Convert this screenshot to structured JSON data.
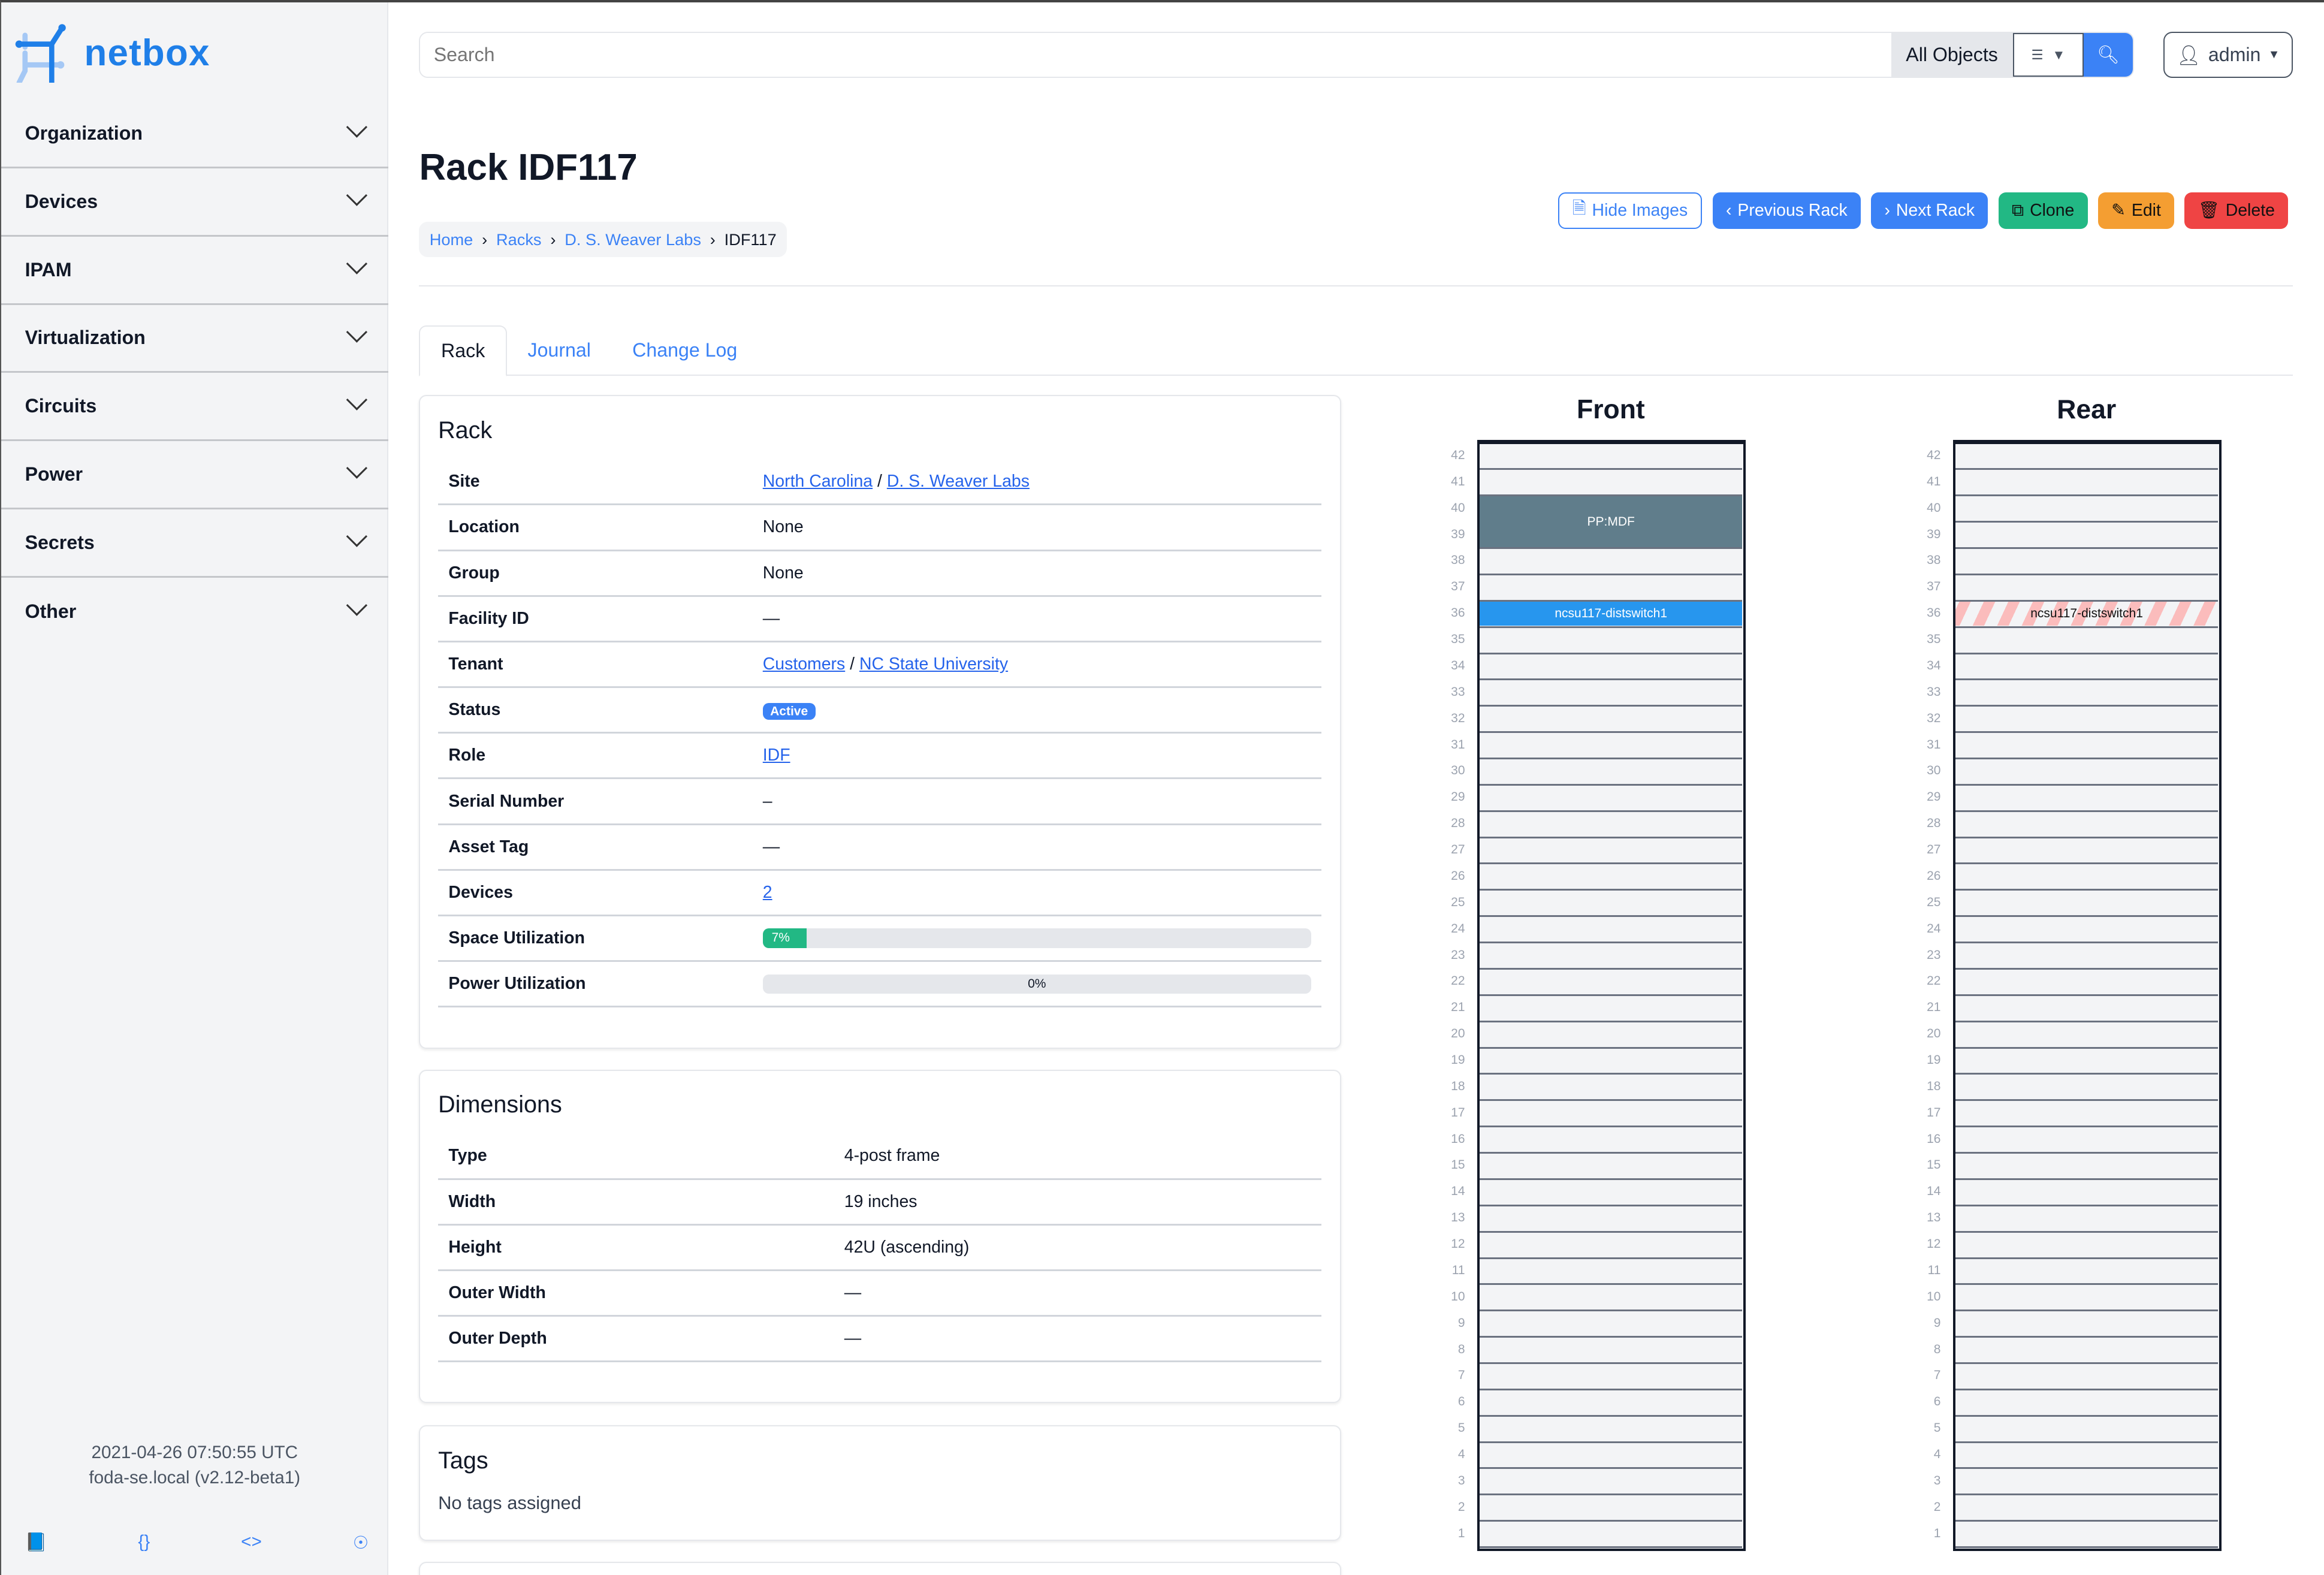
{
  "app": {
    "name": "netbox"
  },
  "sidebar": {
    "items": [
      {
        "label": "Organization"
      },
      {
        "label": "Devices"
      },
      {
        "label": "IPAM"
      },
      {
        "label": "Virtualization"
      },
      {
        "label": "Circuits"
      },
      {
        "label": "Power"
      },
      {
        "label": "Secrets"
      },
      {
        "label": "Other"
      }
    ],
    "footer": {
      "timestamp": "2021-04-26 07:50:55 UTC",
      "host": "foda-se.local (v2.12-beta1)",
      "icons": [
        "book-icon",
        "api-braces-icon",
        "code-icon",
        "help-lifebuoy-icon"
      ]
    }
  },
  "search": {
    "placeholder": "Search",
    "scope": "All Objects"
  },
  "user": {
    "name": "admin"
  },
  "page": {
    "title": "Rack IDF117",
    "breadcrumb": [
      "Home",
      "Racks",
      "D. S. Weaver Labs",
      "IDF117"
    ]
  },
  "actions": {
    "hide_images": "Hide Images",
    "previous": "Previous Rack",
    "next": "Next Rack",
    "clone": "Clone",
    "edit": "Edit",
    "delete": "Delete"
  },
  "colors": {
    "primary": "#3b82f6",
    "success": "#22b884",
    "warning": "#f49e32",
    "danger": "#ef4444",
    "device_front": "#2796ee",
    "patch_panel": "#607d8b"
  },
  "tabs": [
    {
      "label": "Rack"
    },
    {
      "label": "Journal"
    },
    {
      "label": "Change Log"
    }
  ],
  "rack_card": {
    "title": "Rack",
    "rows": {
      "site": {
        "label": "Site",
        "region": "North Carolina",
        "sep": "/",
        "site": "D. S. Weaver Labs"
      },
      "location": {
        "label": "Location",
        "value": "None"
      },
      "group": {
        "label": "Group",
        "value": "None"
      },
      "facility": {
        "label": "Facility ID",
        "value": "—"
      },
      "tenant": {
        "label": "Tenant",
        "group": "Customers",
        "sep": "/",
        "tenant": "NC State University"
      },
      "status": {
        "label": "Status",
        "value": "Active"
      },
      "role": {
        "label": "Role",
        "value": "IDF"
      },
      "serial": {
        "label": "Serial Number",
        "value": "–"
      },
      "asset": {
        "label": "Asset Tag",
        "value": "—"
      },
      "devices": {
        "label": "Devices",
        "value": "2"
      },
      "space": {
        "label": "Space Utilization",
        "value": "7%",
        "percent": 7
      },
      "power": {
        "label": "Power Utilization",
        "value": "0%",
        "percent": 0
      }
    }
  },
  "dimensions": {
    "title": "Dimensions",
    "rows": [
      {
        "label": "Type",
        "value": "4-post frame"
      },
      {
        "label": "Width",
        "value": "19 inches"
      },
      {
        "label": "Height",
        "value": "42U (ascending)"
      },
      {
        "label": "Outer Width",
        "value": "—"
      },
      {
        "label": "Outer Depth",
        "value": "—"
      }
    ]
  },
  "tags": {
    "title": "Tags",
    "empty": "No tags assigned"
  },
  "elevation": {
    "units": 42,
    "front": {
      "title": "Front",
      "devices": [
        {
          "name": "PP:MDF",
          "top_unit": 40,
          "height": 2,
          "color": "#607d8b"
        },
        {
          "name": "ncsu117-distswitch1",
          "top_unit": 36,
          "height": 1,
          "color": "#2796ee"
        }
      ]
    },
    "rear": {
      "title": "Rear",
      "devices": [
        {
          "name": "ncsu117-distswitch1",
          "top_unit": 36,
          "height": 1,
          "striped": true
        }
      ]
    }
  }
}
